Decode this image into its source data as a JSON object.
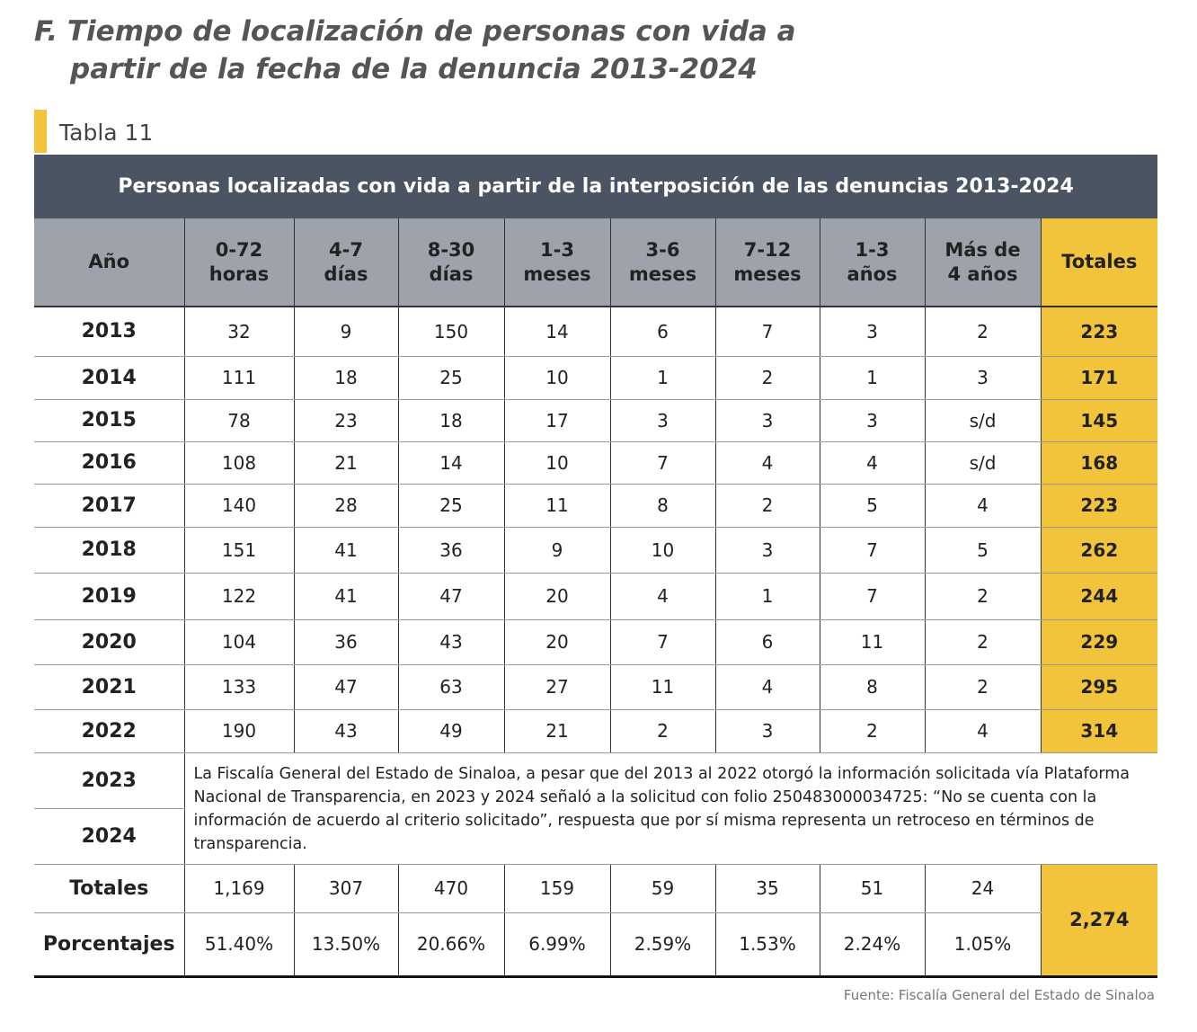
{
  "title": [
    "F. Tiempo de localización de personas con vida a",
    "partir de la fecha de la denuncia 2013-2024"
  ],
  "table_label": "Tabla 11",
  "table": {
    "caption": "Personas localizadas con vida a partir de la interposición de las denuncias 2013-2024",
    "headers": [
      [
        "Año"
      ],
      [
        "0-72",
        "horas"
      ],
      [
        "4-7",
        "días"
      ],
      [
        "8-30",
        "días"
      ],
      [
        "1-3",
        "meses"
      ],
      [
        "3-6",
        "meses"
      ],
      [
        "7-12",
        "meses"
      ],
      [
        "1-3",
        "años"
      ],
      [
        "Más de",
        "4 años"
      ],
      [
        "Totales"
      ]
    ],
    "rows": [
      [
        "2013",
        "32",
        "9",
        "150",
        "14",
        "6",
        "7",
        "3",
        "2",
        "223"
      ],
      [
        "2014",
        "111",
        "18",
        "25",
        "10",
        "1",
        "2",
        "1",
        "3",
        "171"
      ],
      [
        "2015",
        "78",
        "23",
        "18",
        "17",
        "3",
        "3",
        "3",
        "s/d",
        "145"
      ],
      [
        "2016",
        "108",
        "21",
        "14",
        "10",
        "7",
        "4",
        "4",
        "s/d",
        "168"
      ],
      [
        "2017",
        "140",
        "28",
        "25",
        "11",
        "8",
        "2",
        "5",
        "4",
        "223"
      ],
      [
        "2018",
        "151",
        "41",
        "36",
        "9",
        "10",
        "3",
        "7",
        "5",
        "262"
      ],
      [
        "2019",
        "122",
        "41",
        "47",
        "20",
        "4",
        "1",
        "7",
        "2",
        "244"
      ],
      [
        "2020",
        "104",
        "36",
        "43",
        "20",
        "7",
        "6",
        "11",
        "2",
        "229"
      ],
      [
        "2021",
        "133",
        "47",
        "63",
        "27",
        "11",
        "4",
        "8",
        "2",
        "295"
      ],
      [
        "2022",
        "190",
        "43",
        "49",
        "21",
        "2",
        "3",
        "2",
        "4",
        "314"
      ]
    ],
    "note_rows": [
      "2023",
      "2024"
    ],
    "note": "La Fiscalía General del Estado de Sinaloa, a pesar que del 2013 al 2022 otorgó la información solicitada vía Plataforma Nacional de Transparencia, en 2023 y 2024 señaló a la solicitud con folio 250483000034725: “No se cuenta con la información de acuerdo al criterio solicitado”, respuesta que por sí misma representa un retroceso en términos de transparencia.",
    "totals_label": "Totales",
    "totals": [
      "1,169",
      "307",
      "470",
      "159",
      "59",
      "35",
      "51",
      "24"
    ],
    "percent_label": "Porcentajes",
    "percents": [
      "51.40%",
      "13.50%",
      "20.66%",
      "6.99%",
      "2.59%",
      "1.53%",
      "2.24%",
      "1.05%"
    ],
    "grand_total": "2,274"
  },
  "source": "Fuente: Fiscalía General del Estado de Sinaloa"
}
